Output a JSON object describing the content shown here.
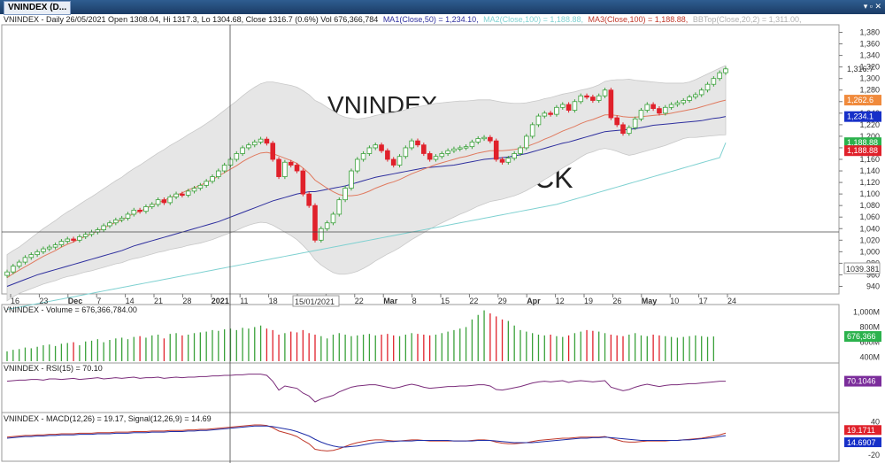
{
  "window": {
    "tab_title": "VNINDEX (D...",
    "controls": "▾ ▫ ✕"
  },
  "header": {
    "symbol_line": "VNINDEX - Daily 26/05/2021 Open 1308.04, Hi 1317.3, Lo 1304.68, Close 1316.7 (0.6%) Vol 676,366,784",
    "ma1": "MA1(Close,50) = 1,234.10,",
    "ma2": "MA2(Close,100) = 1,188.88,",
    "ma3": "MA3(Close,100) = 1,188.88,",
    "bb": "BBTop(Close,20,2) = 1,311.00,"
  },
  "watermark": {
    "line1": "VNINDEX",
    "line2": "T STOCK"
  },
  "cursor": {
    "date_label": "15/01/2021",
    "price_label": "1039.381"
  },
  "colors": {
    "up": "#3aa13a",
    "down": "#e0212b",
    "ma1": "#2e2f9e",
    "ma2": "#7fd1d1",
    "ma3": "#e07a5f",
    "bb_fill": "#e6e6e6",
    "cursor": "#444444"
  },
  "chart_data": [
    {
      "type": "candlestick",
      "title": "VNINDEX - Daily",
      "x_tick_labels": [
        "16",
        "23",
        "Dec",
        "7",
        "14",
        "21",
        "28",
        "2021",
        "11",
        "18",
        "25",
        "8",
        "22",
        "Mar",
        "8",
        "15",
        "22",
        "29",
        "Apr",
        "12",
        "19",
        "26",
        "May",
        "10",
        "17",
        "24"
      ],
      "y_tick_labels": [
        "1,380",
        "1,360",
        "1,340",
        "1,320",
        "1,300",
        "1,280",
        "1,260",
        "1,240",
        "1,220",
        "1,200",
        "1,180",
        "1,160",
        "1,140",
        "1,120",
        "1,100",
        "1,080",
        "1,060",
        "1,040",
        "1,020",
        "1,000",
        "980",
        "960",
        "940"
      ],
      "ylim": [
        930,
        1390
      ],
      "price_tags": [
        {
          "label": "1,316.7",
          "value": 1316.7,
          "color": "none"
        },
        {
          "label": "1,262.6",
          "value": 1262.6,
          "color": "#f08a3c"
        },
        {
          "label": "1,234.1",
          "value": 1234.1,
          "color": "#1730c8"
        },
        {
          "label": "1,188.88",
          "value": 1188.88,
          "color": "#2bb24c"
        },
        {
          "label": "1,188.88",
          "value": 1175,
          "color": "#e0212b"
        }
      ],
      "close": [
        965,
        975,
        982,
        990,
        995,
        1000,
        1005,
        1008,
        1012,
        1018,
        1022,
        1020,
        1026,
        1030,
        1034,
        1038,
        1045,
        1050,
        1055,
        1058,
        1065,
        1072,
        1070,
        1078,
        1082,
        1090,
        1085,
        1095,
        1100,
        1098,
        1105,
        1110,
        1115,
        1122,
        1130,
        1140,
        1150,
        1160,
        1170,
        1180,
        1185,
        1190,
        1195,
        1188,
        1160,
        1130,
        1155,
        1150,
        1140,
        1100,
        1080,
        1020,
        1040,
        1050,
        1065,
        1090,
        1110,
        1140,
        1160,
        1170,
        1180,
        1185,
        1175,
        1160,
        1150,
        1165,
        1180,
        1192,
        1185,
        1170,
        1160,
        1165,
        1170,
        1175,
        1178,
        1180,
        1182,
        1190,
        1196,
        1198,
        1192,
        1160,
        1155,
        1162,
        1170,
        1180,
        1200,
        1220,
        1235,
        1240,
        1238,
        1250,
        1255,
        1245,
        1260,
        1270,
        1268,
        1262,
        1270,
        1280,
        1232,
        1220,
        1205,
        1215,
        1230,
        1245,
        1255,
        1248,
        1240,
        1250,
        1255,
        1258,
        1262,
        1268,
        1272,
        1280,
        1290,
        1300,
        1310,
        1316.7
      ],
      "ma1": [
        940,
        944,
        948,
        952,
        956,
        960,
        963,
        966,
        969,
        972,
        975,
        978,
        981,
        984,
        987,
        990,
        993,
        996,
        999,
        1002,
        1006,
        1010,
        1013,
        1016,
        1019,
        1022,
        1025,
        1028,
        1031,
        1034,
        1037,
        1040,
        1043,
        1046,
        1049,
        1052,
        1056,
        1060,
        1064,
        1068,
        1072,
        1076,
        1080,
        1084,
        1088,
        1091,
        1094,
        1097,
        1100,
        1102,
        1104,
        1104,
        1106,
        1108,
        1110,
        1112,
        1114,
        1117,
        1120,
        1123,
        1126,
        1129,
        1131,
        1133,
        1135,
        1137,
        1139,
        1141,
        1143,
        1145,
        1146,
        1147,
        1148,
        1149,
        1150,
        1152,
        1154,
        1156,
        1158,
        1160,
        1161,
        1162,
        1163,
        1164,
        1166,
        1168,
        1170,
        1173,
        1176,
        1179,
        1182,
        1185,
        1188,
        1190,
        1193,
        1196,
        1199,
        1202,
        1205,
        1208,
        1209,
        1210,
        1211,
        1212,
        1213,
        1215,
        1217,
        1219,
        1220,
        1221,
        1222,
        1223,
        1224,
        1225,
        1226,
        1227,
        1229,
        1231,
        1232,
        1234.1
      ],
      "ma2": [
        900,
        902,
        904,
        906,
        908,
        910,
        912,
        914,
        916,
        918,
        920,
        922,
        924,
        926,
        928,
        930,
        932,
        934,
        936,
        938,
        940,
        942,
        944,
        946,
        948,
        950,
        952,
        954,
        956,
        958,
        960,
        962,
        964,
        966,
        968,
        970,
        972,
        974,
        976,
        978,
        980,
        982,
        984,
        986,
        988,
        990,
        992,
        994,
        996,
        998,
        1000,
        1002,
        1004,
        1006,
        1008,
        1010,
        1012,
        1014,
        1016,
        1018,
        1020,
        1022,
        1024,
        1026,
        1028,
        1030,
        1032,
        1034,
        1036,
        1038,
        1040,
        1042,
        1044,
        1046,
        1048,
        1050,
        1052,
        1054,
        1056,
        1058,
        1060,
        1062,
        1064,
        1066,
        1068,
        1070,
        1072,
        1074,
        1076,
        1078,
        1080,
        1082,
        1085,
        1088,
        1091,
        1094,
        1097,
        1100,
        1103,
        1106,
        1109,
        1112,
        1115,
        1118,
        1121,
        1124,
        1127,
        1130,
        1133,
        1136,
        1139,
        1142,
        1145,
        1148,
        1151,
        1154,
        1157,
        1160,
        1163,
        1188.88
      ],
      "ma3": [
        955,
        962,
        968,
        974,
        980,
        986,
        992,
        997,
        1002,
        1008,
        1013,
        1017,
        1022,
        1027,
        1031,
        1036,
        1041,
        1046,
        1051,
        1055,
        1061,
        1066,
        1070,
        1075,
        1080,
        1085,
        1089,
        1094,
        1098,
        1102,
        1107,
        1111,
        1115,
        1120,
        1125,
        1131,
        1137,
        1143,
        1149,
        1156,
        1162,
        1167,
        1171,
        1172,
        1170,
        1166,
        1162,
        1158,
        1153,
        1145,
        1136,
        1124,
        1117,
        1110,
        1104,
        1099,
        1097,
        1097,
        1098,
        1101,
        1105,
        1110,
        1114,
        1118,
        1121,
        1125,
        1130,
        1135,
        1139,
        1143,
        1147,
        1151,
        1154,
        1157,
        1160,
        1163,
        1165,
        1168,
        1171,
        1173,
        1175,
        1175,
        1175,
        1176,
        1177,
        1179,
        1182,
        1186,
        1190,
        1195,
        1199,
        1204,
        1209,
        1213,
        1217,
        1222,
        1226,
        1229,
        1233,
        1237,
        1237,
        1236,
        1234,
        1233,
        1233,
        1234,
        1235,
        1236,
        1237,
        1238,
        1240,
        1242,
        1244,
        1246,
        1248,
        1251,
        1254,
        1257,
        1260,
        1262.6
      ],
      "bb_width": [
        40,
        40,
        40,
        42,
        44,
        46,
        48,
        50,
        52,
        54,
        56,
        58,
        60,
        62,
        64,
        66,
        68,
        70,
        72,
        74,
        76,
        78,
        80,
        82,
        84,
        86,
        88,
        90,
        92,
        94,
        96,
        98,
        100,
        102,
        104,
        106,
        108,
        110,
        112,
        114,
        116,
        118,
        120,
        122,
        124,
        126,
        128,
        130,
        132,
        134,
        136,
        138,
        140,
        140,
        140,
        138,
        136,
        134,
        132,
        130,
        128,
        126,
        124,
        122,
        120,
        118,
        116,
        114,
        112,
        110,
        108,
        106,
        104,
        102,
        100,
        98,
        96,
        94,
        92,
        90,
        88,
        86,
        84,
        82,
        80,
        78,
        76,
        74,
        72,
        70,
        68,
        66,
        64,
        62,
        60,
        58,
        56,
        56,
        56,
        58,
        60,
        62,
        64,
        66,
        64,
        62,
        60,
        58,
        56,
        54,
        52,
        50,
        48,
        48,
        50,
        52,
        54,
        56,
        58,
        60
      ]
    },
    {
      "type": "bar",
      "title": "VNINDEX - Volume = 676,366,784.00",
      "y_tick_labels": [
        "1,000M",
        "800M",
        "600M",
        "400M"
      ],
      "ylim": [
        350,
        1050
      ],
      "last_value_label": "676,366",
      "values": [
        480,
        500,
        510,
        530,
        520,
        540,
        560,
        570,
        550,
        580,
        590,
        600,
        560,
        610,
        620,
        640,
        600,
        630,
        650,
        660,
        640,
        670,
        680,
        660,
        690,
        700,
        650,
        710,
        720,
        690,
        700,
        720,
        730,
        740,
        760,
        750,
        770,
        780,
        760,
        790,
        780,
        800,
        820,
        780,
        760,
        700,
        720,
        740,
        730,
        760,
        720,
        700,
        680,
        650,
        700,
        720,
        700,
        680,
        690,
        700,
        710,
        690,
        700,
        710,
        690,
        680,
        700,
        720,
        710,
        700,
        690,
        700,
        720,
        740,
        760,
        780,
        800,
        900,
        960,
        1020,
        980,
        940,
        900,
        880,
        820,
        760,
        740,
        720,
        700,
        690,
        700,
        680,
        670,
        690,
        720,
        740,
        760,
        750,
        740,
        720,
        700,
        690,
        680,
        700,
        720,
        690,
        680,
        700,
        690,
        680,
        670,
        660,
        670,
        680,
        690,
        680,
        670,
        676
      ]
    },
    {
      "type": "line",
      "title": "VNINDEX - RSI(15) = 70.10",
      "last_value_label": "70.1046",
      "ylim": [
        20,
        95
      ],
      "values": [
        70,
        71,
        72,
        72,
        73,
        73,
        72,
        74,
        74,
        73,
        74,
        75,
        73,
        74,
        75,
        76,
        74,
        75,
        76,
        75,
        76,
        77,
        75,
        76,
        76,
        77,
        75,
        76,
        77,
        76,
        77,
        77,
        78,
        78,
        79,
        79,
        80,
        80,
        81,
        81,
        82,
        82,
        82,
        80,
        70,
        55,
        62,
        60,
        58,
        50,
        45,
        35,
        40,
        43,
        46,
        52,
        56,
        60,
        62,
        63,
        64,
        64,
        62,
        60,
        58,
        60,
        63,
        65,
        63,
        60,
        58,
        59,
        60,
        61,
        61,
        62,
        62,
        63,
        64,
        64,
        62,
        56,
        55,
        57,
        59,
        61,
        64,
        67,
        69,
        70,
        69,
        70,
        71,
        68,
        70,
        71,
        70,
        69,
        70,
        71,
        60,
        57,
        54,
        56,
        60,
        63,
        65,
        63,
        61,
        63,
        64,
        64,
        65,
        66,
        66,
        67,
        68,
        69,
        70,
        70.1
      ]
    },
    {
      "type": "line",
      "title": "VNINDEX - MACD(12,26) = 19.17, Signal(12,26,9) = 14.69",
      "y_tick_labels": [
        "40",
        "0",
        "-20"
      ],
      "last_value_labels": [
        "19.1711",
        "14.6907"
      ],
      "ylim": [
        -30,
        50
      ],
      "series": [
        {
          "name": "MACD(12,26)",
          "values": [
            12,
            13,
            14,
            15,
            15,
            16,
            16,
            17,
            17,
            18,
            18,
            18,
            19,
            19,
            19,
            20,
            20,
            20,
            21,
            21,
            21,
            22,
            22,
            22,
            23,
            23,
            23,
            24,
            24,
            24,
            25,
            25,
            26,
            26,
            27,
            28,
            29,
            30,
            31,
            32,
            33,
            34,
            34,
            33,
            29,
            23,
            20,
            17,
            13,
            6,
            0,
            -10,
            -12,
            -13,
            -12,
            -9,
            -5,
            -1,
            2,
            4,
            6,
            7,
            7,
            6,
            5,
            5,
            6,
            7,
            7,
            6,
            5,
            5,
            5,
            5,
            5,
            5,
            5,
            6,
            7,
            7,
            6,
            3,
            1,
            0,
            0,
            1,
            2,
            4,
            6,
            7,
            8,
            9,
            10,
            10,
            11,
            12,
            12,
            12,
            12,
            13,
            10,
            7,
            4,
            3,
            3,
            4,
            5,
            5,
            5,
            5,
            6,
            6,
            7,
            8,
            9,
            10,
            12,
            14,
            16,
            19.17
          ]
        },
        {
          "name": "Signal(12,26,9)",
          "values": [
            10,
            11,
            12,
            13,
            13,
            14,
            14,
            15,
            15,
            16,
            16,
            16,
            17,
            17,
            17,
            18,
            18,
            18,
            19,
            19,
            19,
            20,
            20,
            20,
            21,
            21,
            21,
            22,
            22,
            22,
            23,
            23,
            24,
            24,
            25,
            26,
            27,
            28,
            29,
            30,
            31,
            32,
            32,
            32,
            31,
            29,
            27,
            25,
            22,
            18,
            14,
            8,
            3,
            -1,
            -4,
            -6,
            -6,
            -5,
            -4,
            -2,
            0,
            2,
            3,
            4,
            4,
            5,
            5,
            5,
            6,
            6,
            6,
            6,
            6,
            6,
            5,
            5,
            5,
            5,
            6,
            6,
            6,
            5,
            4,
            3,
            2,
            2,
            2,
            2,
            3,
            4,
            5,
            6,
            7,
            8,
            9,
            10,
            10,
            11,
            11,
            12,
            11,
            10,
            9,
            8,
            7,
            6,
            6,
            6,
            6,
            6,
            6,
            6,
            7,
            7,
            8,
            9,
            10,
            11,
            13,
            14.69
          ]
        }
      ]
    }
  ]
}
